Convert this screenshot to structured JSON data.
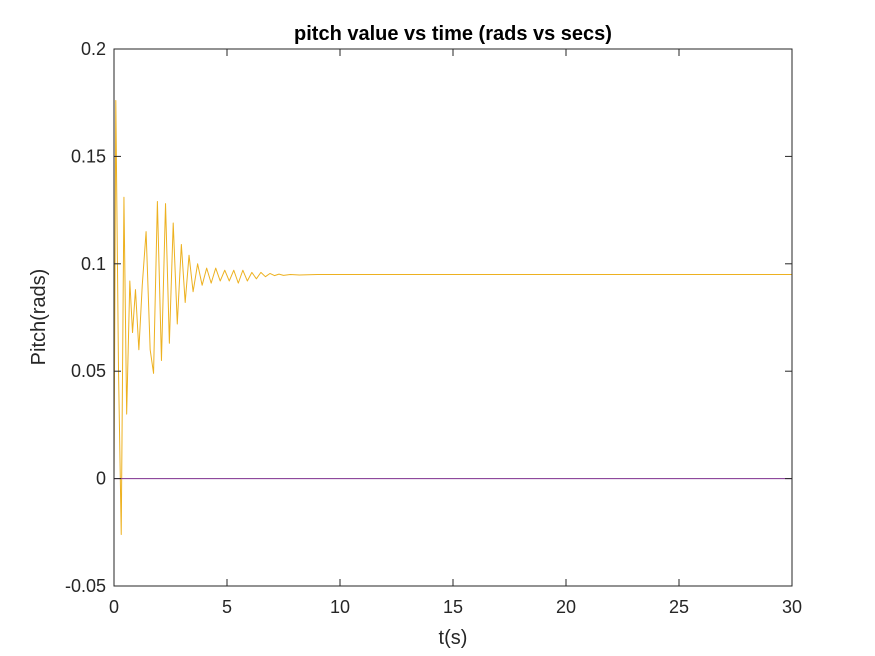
{
  "chart_data": {
    "type": "line",
    "title": "pitch value vs time (rads vs secs)",
    "xlabel": "t(s)",
    "ylabel": "Pitch(rads)",
    "xlim": [
      0,
      30
    ],
    "ylim": [
      -0.05,
      0.2
    ],
    "x_ticks": [
      "0",
      "5",
      "10",
      "15",
      "20",
      "25",
      "30"
    ],
    "y_ticks": [
      "-0.05",
      "0",
      "0.05",
      "0.1",
      "0.15",
      "0.2"
    ],
    "grid": false,
    "legend": "none",
    "series": [
      {
        "color": "#EDB120",
        "points": [
          [
            0,
            0
          ],
          [
            0.08,
            0.176
          ],
          [
            0.2,
            0.05
          ],
          [
            0.32,
            -0.026
          ],
          [
            0.44,
            0.131
          ],
          [
            0.56,
            0.03
          ],
          [
            0.7,
            0.092
          ],
          [
            0.82,
            0.068
          ],
          [
            0.95,
            0.088
          ],
          [
            1.1,
            0.06
          ],
          [
            1.25,
            0.09
          ],
          [
            1.42,
            0.115
          ],
          [
            1.6,
            0.06
          ],
          [
            1.75,
            0.049
          ],
          [
            1.92,
            0.129
          ],
          [
            2.1,
            0.055
          ],
          [
            2.28,
            0.128
          ],
          [
            2.45,
            0.063
          ],
          [
            2.62,
            0.119
          ],
          [
            2.8,
            0.072
          ],
          [
            2.98,
            0.109
          ],
          [
            3.15,
            0.082
          ],
          [
            3.32,
            0.104
          ],
          [
            3.5,
            0.087
          ],
          [
            3.7,
            0.1
          ],
          [
            3.9,
            0.09
          ],
          [
            4.1,
            0.098
          ],
          [
            4.3,
            0.091
          ],
          [
            4.5,
            0.098
          ],
          [
            4.7,
            0.092
          ],
          [
            4.9,
            0.097
          ],
          [
            5.1,
            0.092
          ],
          [
            5.3,
            0.097
          ],
          [
            5.5,
            0.091
          ],
          [
            5.7,
            0.097
          ],
          [
            5.9,
            0.092
          ],
          [
            6.1,
            0.096
          ],
          [
            6.3,
            0.093
          ],
          [
            6.5,
            0.096
          ],
          [
            6.7,
            0.094
          ],
          [
            6.9,
            0.0955
          ],
          [
            7.1,
            0.0945
          ],
          [
            7.3,
            0.0952
          ],
          [
            7.5,
            0.0946
          ],
          [
            7.8,
            0.095
          ],
          [
            8.2,
            0.0948
          ],
          [
            9,
            0.095
          ],
          [
            10,
            0.095
          ],
          [
            15,
            0.095
          ],
          [
            20,
            0.095
          ],
          [
            25,
            0.095
          ],
          [
            30,
            0.095
          ]
        ]
      },
      {
        "color": "#7E2F8E",
        "points": [
          [
            0,
            0
          ],
          [
            30,
            0
          ]
        ]
      }
    ]
  }
}
